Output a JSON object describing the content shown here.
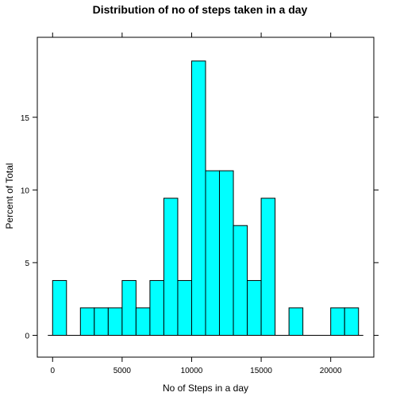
{
  "chart_data": {
    "type": "bar",
    "title": "Distribution of no of steps taken in a day",
    "xlabel": "No of Steps in a day",
    "ylabel": "Percent of Total",
    "bin_width": 1000,
    "bins": [
      {
        "start": 0,
        "end": 1000,
        "value": 3.77
      },
      {
        "start": 1000,
        "end": 2000,
        "value": 0
      },
      {
        "start": 2000,
        "end": 3000,
        "value": 1.89
      },
      {
        "start": 3000,
        "end": 4000,
        "value": 1.89
      },
      {
        "start": 4000,
        "end": 5000,
        "value": 1.89
      },
      {
        "start": 5000,
        "end": 6000,
        "value": 3.77
      },
      {
        "start": 6000,
        "end": 7000,
        "value": 1.89
      },
      {
        "start": 7000,
        "end": 8000,
        "value": 3.77
      },
      {
        "start": 8000,
        "end": 9000,
        "value": 9.43
      },
      {
        "start": 9000,
        "end": 10000,
        "value": 3.77
      },
      {
        "start": 10000,
        "end": 11000,
        "value": 18.87
      },
      {
        "start": 11000,
        "end": 12000,
        "value": 11.32
      },
      {
        "start": 12000,
        "end": 13000,
        "value": 11.32
      },
      {
        "start": 13000,
        "end": 14000,
        "value": 7.55
      },
      {
        "start": 14000,
        "end": 15000,
        "value": 3.77
      },
      {
        "start": 15000,
        "end": 16000,
        "value": 9.43
      },
      {
        "start": 16000,
        "end": 17000,
        "value": 0
      },
      {
        "start": 17000,
        "end": 18000,
        "value": 1.89
      },
      {
        "start": 18000,
        "end": 19000,
        "value": 0
      },
      {
        "start": 19000,
        "end": 20000,
        "value": 0
      },
      {
        "start": 20000,
        "end": 21000,
        "value": 1.89
      },
      {
        "start": 21000,
        "end": 22000,
        "value": 1.89
      }
    ],
    "x_ticks": [
      {
        "value": 0,
        "label": "0"
      },
      {
        "value": 5000,
        "label": "5000"
      },
      {
        "value": 10000,
        "label": "10000"
      },
      {
        "value": 15000,
        "label": "15000"
      },
      {
        "value": 20000,
        "label": "20000"
      }
    ],
    "y_ticks": [
      {
        "value": 0,
        "label": "0"
      },
      {
        "value": 5,
        "label": "5"
      },
      {
        "value": 10,
        "label": "10"
      },
      {
        "value": 15,
        "label": "15"
      }
    ],
    "xlim": [
      -1100,
      23100
    ],
    "ylim": [
      -1.5,
      20.5
    ],
    "bar_color": "#00FFFF",
    "bar_edge_color": "#000000",
    "grid": false,
    "legend": "none"
  }
}
